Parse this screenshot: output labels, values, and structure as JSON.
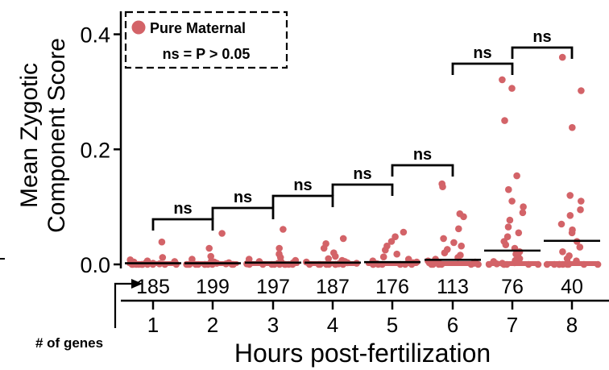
{
  "chart_data": {
    "type": "scatter",
    "xlabel": "Hours post-fertilization",
    "ylabel_line1": "Mean Zygotic",
    "ylabel_line2": "Component Score",
    "x_ticks": [
      "1",
      "2",
      "3",
      "4",
      "5",
      "6",
      "7",
      "8"
    ],
    "y_ticks": [
      "0.0",
      "0.2",
      "0.4"
    ],
    "ylim": [
      0,
      0.44
    ],
    "gene_counts": [
      "185",
      "199",
      "197",
      "187",
      "176",
      "113",
      "76",
      "40"
    ],
    "gene_counts_label": "# of genes",
    "legend": {
      "series_name": "Pure Maternal",
      "note": "ns = P > 0.05",
      "placement": "top-left"
    },
    "point_color": "#d36368",
    "means": [
      0.002,
      0.002,
      0.003,
      0.003,
      0.004,
      0.008,
      0.024,
      0.041
    ],
    "comparisons": [
      {
        "from": "1",
        "to": "2",
        "label": "ns"
      },
      {
        "from": "2",
        "to": "3",
        "label": "ns"
      },
      {
        "from": "3",
        "to": "4",
        "label": "ns"
      },
      {
        "from": "4",
        "to": "5",
        "label": "ns"
      },
      {
        "from": "5",
        "to": "6",
        "label": "ns"
      },
      {
        "from": "6",
        "to": "7",
        "label": "ns"
      },
      {
        "from": "7",
        "to": "8",
        "label": "ns"
      }
    ],
    "series": [
      {
        "x": "1",
        "values": [
          0.039,
          0.012,
          0.008,
          0.006,
          0.005,
          0.004,
          0.003,
          0.002,
          0.001,
          0.0,
          0.0,
          0.0,
          0.0,
          0.0,
          0.0,
          0.0,
          0.0,
          0.0,
          0.0,
          0.0
        ]
      },
      {
        "x": "2",
        "values": [
          0.054,
          0.028,
          0.014,
          0.009,
          0.006,
          0.004,
          0.003,
          0.002,
          0.001,
          0.0,
          0.0,
          0.0,
          0.0,
          0.0,
          0.0,
          0.0,
          0.0,
          0.0,
          0.0,
          0.0
        ]
      },
      {
        "x": "3",
        "values": [
          0.061,
          0.028,
          0.018,
          0.012,
          0.009,
          0.007,
          0.005,
          0.004,
          0.003,
          0.002,
          0.001,
          0.0,
          0.0,
          0.0,
          0.0,
          0.0,
          0.0,
          0.0,
          0.0,
          0.0
        ]
      },
      {
        "x": "4",
        "values": [
          0.045,
          0.036,
          0.028,
          0.02,
          0.014,
          0.01,
          0.007,
          0.005,
          0.004,
          0.003,
          0.002,
          0.001,
          0.0,
          0.0,
          0.0,
          0.0,
          0.0,
          0.0,
          0.0,
          0.0
        ]
      },
      {
        "x": "5",
        "values": [
          0.056,
          0.048,
          0.04,
          0.032,
          0.025,
          0.018,
          0.013,
          0.009,
          0.006,
          0.004,
          0.003,
          0.002,
          0.001,
          0.0,
          0.0,
          0.0,
          0.0,
          0.0,
          0.0,
          0.0
        ]
      },
      {
        "x": "6",
        "values": [
          0.14,
          0.135,
          0.088,
          0.083,
          0.062,
          0.045,
          0.038,
          0.032,
          0.026,
          0.02,
          0.016,
          0.012,
          0.009,
          0.006,
          0.004,
          0.003,
          0.002,
          0.001,
          0.0,
          0.0,
          0.0,
          0.0,
          0.0,
          0.0
        ]
      },
      {
        "x": "7",
        "values": [
          0.321,
          0.306,
          0.25,
          0.154,
          0.13,
          0.11,
          0.1,
          0.09,
          0.077,
          0.065,
          0.055,
          0.048,
          0.04,
          0.034,
          0.028,
          0.022,
          0.018,
          0.014,
          0.01,
          0.007,
          0.005,
          0.003,
          0.002,
          0.001,
          0.0,
          0.0,
          0.0,
          0.0,
          0.0,
          0.0
        ]
      },
      {
        "x": "8",
        "values": [
          0.36,
          0.302,
          0.238,
          0.12,
          0.11,
          0.095,
          0.085,
          0.07,
          0.06,
          0.055,
          0.04,
          0.03,
          0.022,
          0.015,
          0.01,
          0.006,
          0.003,
          0.0,
          0.0,
          0.0,
          0.0,
          0.0,
          0.0,
          0.0,
          0.0,
          0.0
        ]
      }
    ]
  }
}
